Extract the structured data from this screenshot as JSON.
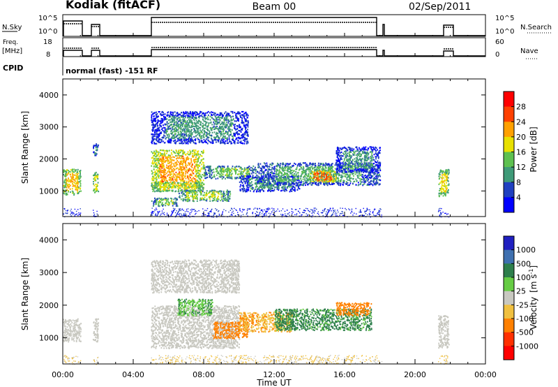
{
  "header": {
    "station": "Kodiak (fitACF)",
    "beam": "Beam 00",
    "date": "02/Sep/2011"
  },
  "summary_panels": {
    "nsky_label": "N.Sky",
    "nsearch_label": "N.Search",
    "nsky_tick_top": "10^5",
    "nsky_tick_bottom": "10^0",
    "freq_label_line1": "Freq.",
    "freq_label_line2": "[MHz]",
    "freq_tick_top": "18",
    "freq_tick_bottom": "8",
    "nave_label": "Nave",
    "nave_tick_top": "60",
    "nave_tick_bottom": "0",
    "cpid_label": "CPID",
    "cpid_value": "normal (fast) -151 RF",
    "colors": {
      "trace": "#000000"
    }
  },
  "chart_data": [
    {
      "type": "heatmap",
      "name": "power",
      "ylabel": "Slant Range [km]",
      "ylim": [
        200,
        4500
      ],
      "yticks": [
        "1000",
        "2000",
        "3000",
        "4000"
      ],
      "colorbar_label": "Power [dB]",
      "colorbar_ticks": [
        "4",
        "8",
        "12",
        "16",
        "20",
        "24",
        "28"
      ],
      "colorscale": [
        "#0000ff",
        "#2040c0",
        "#3f9a78",
        "#5ec050",
        "#e8e000",
        "#ffa000",
        "#ff4000",
        "#ff0000"
      ],
      "grid": false,
      "blobs": [
        {
          "t0": 0.0,
          "t1": 1.0,
          "r0": 900,
          "r1": 1700,
          "v": 20
        },
        {
          "t0": 1.7,
          "t1": 2.0,
          "r0": 950,
          "r1": 1600,
          "v": 18
        },
        {
          "t0": 1.7,
          "t1": 2.0,
          "r0": 2100,
          "r1": 2500,
          "v": 8
        },
        {
          "t0": 5.0,
          "t1": 8.0,
          "r0": 1100,
          "r1": 2300,
          "v": 22
        },
        {
          "t0": 5.0,
          "t1": 8.0,
          "r0": 1000,
          "r1": 1300,
          "v": 18
        },
        {
          "t0": 5.0,
          "t1": 6.5,
          "r0": 550,
          "r1": 800,
          "v": 14
        },
        {
          "t0": 6.5,
          "t1": 9.5,
          "r0": 700,
          "r1": 1050,
          "v": 16
        },
        {
          "t0": 5.0,
          "t1": 10.5,
          "r0": 2500,
          "r1": 3500,
          "v": 10
        },
        {
          "t0": 8.0,
          "t1": 11.0,
          "r0": 1400,
          "r1": 1800,
          "v": 14
        },
        {
          "t0": 10.0,
          "t1": 13.5,
          "r0": 1000,
          "r1": 1500,
          "v": 10
        },
        {
          "t0": 11.0,
          "t1": 18.0,
          "r0": 1200,
          "r1": 1900,
          "v": 12
        },
        {
          "t0": 14.0,
          "t1": 15.5,
          "r0": 1300,
          "r1": 1650,
          "v": 24
        },
        {
          "t0": 15.5,
          "t1": 18.0,
          "r0": 1600,
          "r1": 2400,
          "v": 10
        },
        {
          "t0": 21.3,
          "t1": 21.9,
          "r0": 850,
          "r1": 1700,
          "v": 18
        }
      ],
      "ground_band": {
        "r0": 200,
        "r1": 480,
        "v": 4
      }
    },
    {
      "type": "heatmap",
      "name": "velocity",
      "ylabel": "Slant Range [km]",
      "xlabel": "Time UT",
      "ylim": [
        200,
        4500
      ],
      "yticks": [
        "1000",
        "2000",
        "3000",
        "4000"
      ],
      "xticks": [
        "00:00",
        "04:00",
        "08:00",
        "12:00",
        "16:00",
        "20:00",
        "00:00"
      ],
      "colorbar_label_main": "Velocity",
      "colorbar_label_unit": "[m s",
      "colorbar_label_exp": "-1",
      "colorbar_label_close": "]",
      "colorbar_ticks": [
        "1000",
        "500",
        "100",
        "25",
        "-25",
        "-100",
        "-500",
        "-1000"
      ],
      "colorscale": [
        "#2020c0",
        "#3f70b0",
        "#2e7f4c",
        "#66cc44",
        "#c8c8c0",
        "#f0c040",
        "#ff8000",
        "#ff3000",
        "#ff0000"
      ],
      "grid": false,
      "blobs": [
        {
          "t0": 0.0,
          "t1": 1.0,
          "r0": 900,
          "r1": 1600,
          "v": 0
        },
        {
          "t0": 1.7,
          "t1": 2.0,
          "r0": 900,
          "r1": 1600,
          "v": 0
        },
        {
          "t0": 5.0,
          "t1": 10.0,
          "r0": 700,
          "r1": 2000,
          "v": 0
        },
        {
          "t0": 5.0,
          "t1": 10.0,
          "r0": 2400,
          "r1": 3400,
          "v": 0
        },
        {
          "t0": 6.5,
          "t1": 8.5,
          "r0": 1700,
          "r1": 2200,
          "v": 80
        },
        {
          "t0": 8.5,
          "t1": 10.5,
          "r0": 1000,
          "r1": 1500,
          "v": -300
        },
        {
          "t0": 10.0,
          "t1": 13.0,
          "r0": 1200,
          "r1": 1800,
          "v": -80
        },
        {
          "t0": 12.0,
          "t1": 17.5,
          "r0": 1250,
          "r1": 1900,
          "v": 150
        },
        {
          "t0": 15.5,
          "t1": 17.5,
          "r0": 1700,
          "r1": 2100,
          "v": -200
        },
        {
          "t0": 21.3,
          "t1": 21.9,
          "r0": 700,
          "r1": 1700,
          "v": 0
        }
      ],
      "ground_band": {
        "r0": 200,
        "r1": 480,
        "v": -30
      }
    }
  ]
}
